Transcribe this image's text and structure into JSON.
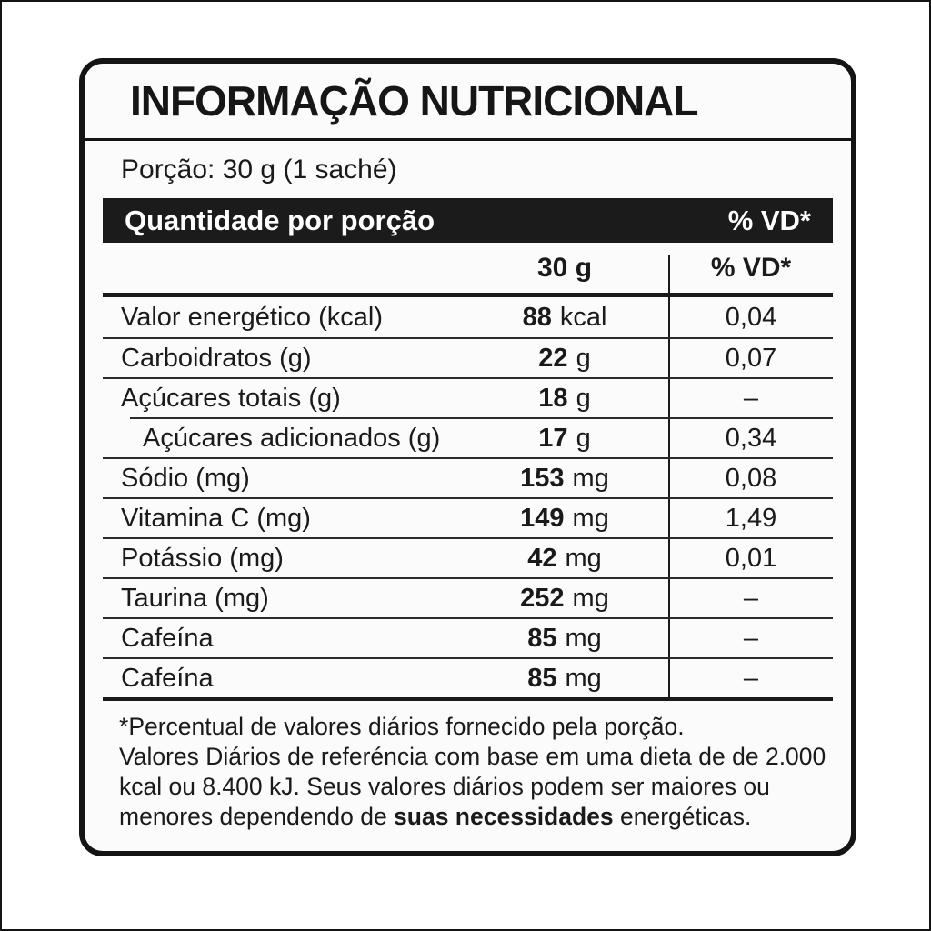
{
  "label": {
    "title": "INFORMAÇÃO NUTRICIONAL",
    "serving_line": "Porção: 30 g (1 saché)",
    "bar": {
      "left": "Quantidade por porção",
      "right": "% VD*"
    },
    "columns": {
      "amount": "30 g",
      "dv": "% VD*"
    },
    "rows": [
      {
        "name": "Valor energético (kcal)",
        "amount": "88",
        "unit": "kcal",
        "dv": "0,04",
        "indent": false
      },
      {
        "name": "Carboidratos (g)",
        "amount": "22",
        "unit": "g",
        "dv": "0,07",
        "indent": false
      },
      {
        "name": "Açúcares totais (g)",
        "amount": "18",
        "unit": "g",
        "dv": "–",
        "indent": false
      },
      {
        "name": "Açúcares adicionados (g)",
        "amount": "17",
        "unit": "g",
        "dv": "0,34",
        "indent": true
      },
      {
        "name": "Sódio (mg)",
        "amount": "153",
        "unit": "mg",
        "dv": "0,08",
        "indent": false
      },
      {
        "name": "Vitamina C (mg)",
        "amount": "149",
        "unit": "mg",
        "dv": "1,49",
        "indent": false
      },
      {
        "name": "Potássio (mg)",
        "amount": "42",
        "unit": "mg",
        "dv": "0,01",
        "indent": false
      },
      {
        "name": "Taurina (mg)",
        "amount": "252",
        "unit": "mg",
        "dv": "–",
        "indent": false
      },
      {
        "name": "Cafeína",
        "amount": "85",
        "unit": "mg",
        "dv": "–",
        "indent": false
      },
      {
        "name": "Cafeína",
        "amount": "85",
        "unit": "mg",
        "dv": "–",
        "indent": false
      }
    ],
    "footnotes": {
      "note1": "*Percentual de valores diários fornecido pela porção.",
      "note2_line1": "Valores Diários de referéncia com base em uma dieta de de 2.000",
      "note2_line2": "kcal ou 8.400 kJ. Seus valores diários podem ser maiores ou",
      "note2_line3_before": "menores dependendo de ",
      "note2_line3_bold": "suas necessidades",
      "note2_line3_after": " energéticas."
    },
    "colors": {
      "ink": "#1a1a1a",
      "bar_bg": "#1b1b1b",
      "bar_text": "#ffffff",
      "box_bg": "#fbfbfb",
      "page_bg": "#ffffff",
      "separator": "#2b2b2b"
    }
  }
}
